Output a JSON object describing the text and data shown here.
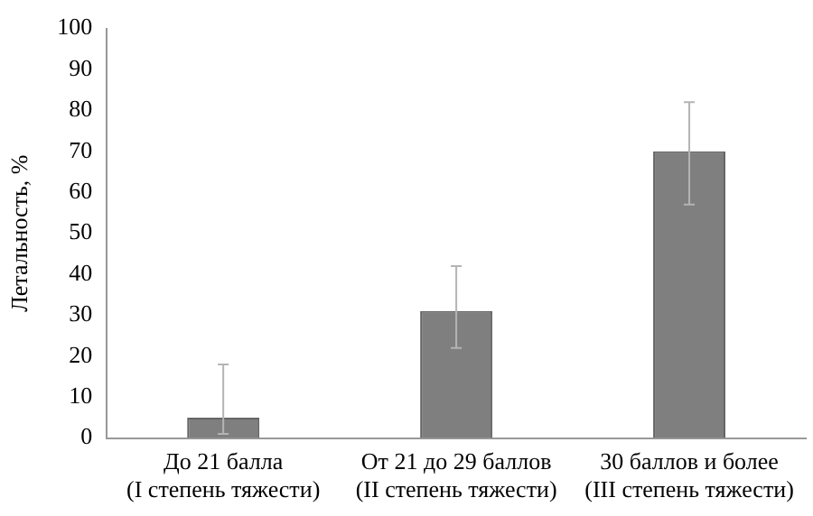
{
  "chart_data": {
    "type": "bar",
    "ylabel": "Летальность, %",
    "categories": [
      "До 21 балла\n(I степень тяжести)",
      "От 21 до 29 баллов\n(II степень тяжести)",
      "30 баллов и более\n(III степень тяжести)"
    ],
    "values": [
      5,
      31,
      70
    ],
    "color": "#7f7f7f",
    "errors": [
      [
        1,
        18
      ],
      [
        22,
        42
      ],
      [
        57,
        82
      ]
    ],
    "ylim": [
      0,
      100
    ],
    "yticks": [
      0,
      10,
      20,
      30,
      40,
      50,
      60,
      70,
      80,
      90,
      100
    ],
    "grid": false,
    "legend": false
  }
}
